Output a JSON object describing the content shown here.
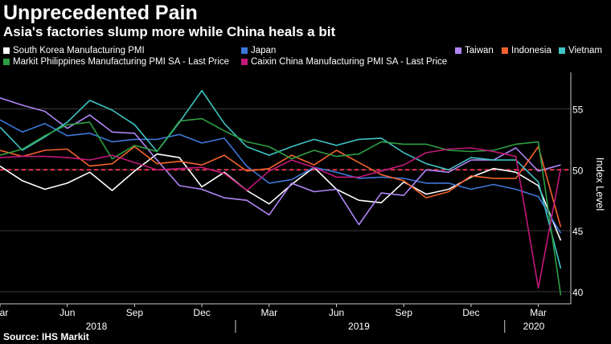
{
  "chart_data": {
    "type": "line",
    "title": "Unprecedented Pain",
    "subtitle": "Asia's factories slump more while China heals a bit",
    "ylabel": "Index Level",
    "ylim": [
      39,
      58
    ],
    "yticks": [
      40,
      45,
      50,
      55
    ],
    "reference_line": 50,
    "x_tick_labels": [
      "Mar",
      "Jun",
      "Sep",
      "Dec",
      "Mar",
      "Jun",
      "Sep",
      "Dec",
      "Mar"
    ],
    "year_labels": [
      "2018",
      "2019",
      "2020"
    ],
    "source": "Source: IHS Markit",
    "series": [
      {
        "name": "South Korea Manufacturing PMI",
        "color": "#ffffff",
        "values": [
          50.3,
          49.1,
          48.4,
          48.9,
          49.8,
          48.3,
          49.9,
          51.3,
          51.0,
          48.6,
          49.8,
          48.3,
          47.2,
          48.8,
          50.2,
          48.4,
          47.5,
          47.3,
          49.0,
          48.0,
          48.4,
          49.4,
          50.1,
          49.8,
          48.7,
          44.2
        ]
      },
      {
        "name": "Japan",
        "color": "#3c78d8",
        "values": [
          54.1,
          53.1,
          53.8,
          52.8,
          53.0,
          52.3,
          52.5,
          52.5,
          52.9,
          52.2,
          52.6,
          50.3,
          48.9,
          49.2,
          50.2,
          49.8,
          49.3,
          49.4,
          49.3,
          48.9,
          48.9,
          48.4,
          48.8,
          48.4,
          47.8,
          44.8
        ]
      },
      {
        "name": "Taiwan",
        "color": "#b085f5",
        "values": [
          55.9,
          55.3,
          54.8,
          53.4,
          54.5,
          53.1,
          53.0,
          50.8,
          48.7,
          48.4,
          47.7,
          47.5,
          46.3,
          48.9,
          48.2,
          48.4,
          45.5,
          48.1,
          47.9,
          50.0,
          49.8,
          50.8,
          50.8,
          51.8,
          49.9,
          50.4
        ]
      },
      {
        "name": "Indonesia",
        "color": "#f4622d",
        "values": [
          51.6,
          51.1,
          51.6,
          51.7,
          50.3,
          50.5,
          51.9,
          50.5,
          50.7,
          50.4,
          51.2,
          49.9,
          50.1,
          51.2,
          50.4,
          51.6,
          50.6,
          49.6,
          49.1,
          47.7,
          48.2,
          49.5,
          49.3,
          49.3,
          51.9,
          45.3
        ]
      },
      {
        "name": "Vietnam",
        "color": "#3ec4c4",
        "values": [
          53.5,
          51.6,
          52.7,
          53.9,
          55.7,
          54.9,
          53.7,
          51.5,
          53.9,
          56.5,
          53.8,
          51.9,
          51.2,
          51.9,
          52.5,
          52.0,
          52.5,
          52.6,
          51.4,
          50.5,
          50.0,
          51.0,
          50.8,
          50.8,
          49.0,
          41.9
        ]
      },
      {
        "name": "Markit Philippines Manufacturing PMI SA - Last Price",
        "color": "#2e9e44",
        "values": [
          51.2,
          51.7,
          52.8,
          53.7,
          53.9,
          50.9,
          52.0,
          51.5,
          54.0,
          54.2,
          53.2,
          52.3,
          51.9,
          50.9,
          51.6,
          51.1,
          51.3,
          52.3,
          52.1,
          52.1,
          51.6,
          51.5,
          51.6,
          52.1,
          52.3,
          39.7
        ]
      },
      {
        "name": "Caixin China Manufacturing PMI SA - Last Price",
        "color": "#c2187a",
        "values": [
          51.0,
          51.1,
          51.1,
          51.0,
          50.8,
          51.2,
          50.6,
          50.0,
          50.1,
          50.2,
          49.7,
          48.3,
          49.9,
          50.8,
          50.2,
          49.4,
          49.4,
          49.9,
          50.4,
          51.4,
          51.7,
          51.8,
          51.5,
          51.1,
          40.3,
          50.1
        ]
      }
    ]
  }
}
